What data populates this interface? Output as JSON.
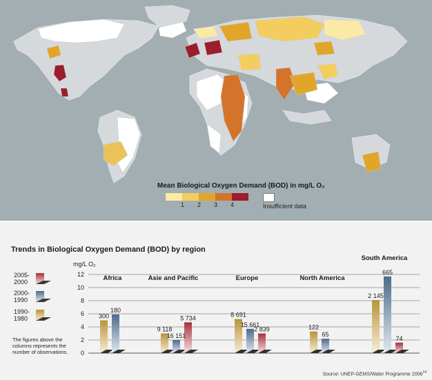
{
  "map": {
    "legend_title": "Mean Biological Oxygen Demand (BOD) in mg/L O₂",
    "legend_ticks": [
      "1",
      "2",
      "3",
      "4"
    ],
    "legend_colors": [
      "#fbeaa6",
      "#f3cd5f",
      "#e1a629",
      "#d4742b",
      "#9c1d2b"
    ],
    "insufficient_label": "Insufficient data",
    "land_color": "#d5d9dc",
    "ocean_color": "#a3aeb3"
  },
  "chart": {
    "title": "Trends in Biological Oxygen Demand (BOD) by region",
    "unit": "mg/L O₂",
    "key": [
      {
        "label_line1": "2005-",
        "label_line2": "2000",
        "color": "#a8323c"
      },
      {
        "label_line1": "2000-",
        "label_line2": "1990",
        "color": "#4d6c8c"
      },
      {
        "label_line1": "1990-",
        "label_line2": "1980",
        "color": "#b8953a"
      }
    ],
    "note": "The figures above the columns represents the number of observations.",
    "source": "Source: UNEP-GEMS/Water Programme 2006"
  },
  "chart_data": {
    "type": "bar",
    "title": "Trends in Biological Oxygen Demand (BOD) by region",
    "ylabel": "mg/L O₂",
    "ylim": [
      0,
      12
    ],
    "yticks": [
      0,
      2,
      4,
      6,
      8,
      10,
      12
    ],
    "categories": [
      "Africa",
      "Asie and Pacific",
      "Europe",
      "North America",
      "South America"
    ],
    "series": [
      {
        "name": "1990-1980",
        "values": [
          5.0,
          3.0,
          5.2,
          3.3,
          8.1
        ],
        "observations": [
          "300",
          "9 118",
          "8 691",
          "122",
          "2 145"
        ]
      },
      {
        "name": "2000-1990",
        "values": [
          5.9,
          2.0,
          3.7,
          2.2,
          11.7
        ],
        "observations": [
          "180",
          "16 151",
          "15 661",
          "65",
          "665"
        ]
      },
      {
        "name": "2005-2000",
        "values": [
          null,
          4.7,
          3.0,
          null,
          1.6
        ],
        "observations": [
          null,
          "5 734",
          "2 839",
          null,
          "74"
        ]
      }
    ],
    "grid": true
  }
}
